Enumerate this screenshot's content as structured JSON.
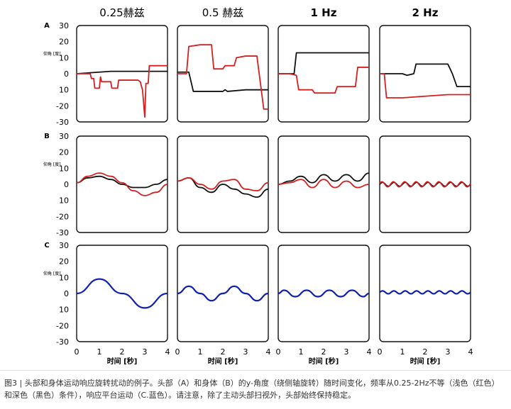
{
  "column_titles": [
    "0.25赫兹",
    "0.5 赫兹",
    "1 Hz",
    "2 Hz"
  ],
  "row_labels": [
    "A",
    "B",
    "C"
  ],
  "ylabel": "仰角 [度]",
  "xlabel": "时间 [秒]",
  "colors": {
    "red": "#d42020",
    "black": "#111111",
    "blue": "#1020b0"
  },
  "caption": "图3 | 头部和身体运动响应旋转扰动的例子。头部（A）和身体（B）的y-角度（绕侧轴旋转）随时间变化，频率从0.25-2Hz不等（浅色（红色）和深色（黑色）条件），响应平台运动（C.蓝色）。请注意，除了主动头部扫视外，头部始终保持稳定。",
  "chart_data": {
    "type": "line",
    "xlim": [
      0,
      4
    ],
    "xticks": [
      "0",
      "1",
      "2",
      "3",
      "4"
    ],
    "ylim": [
      -30,
      30
    ],
    "yticks": [
      "30",
      "20",
      "10",
      "0",
      "10",
      "-20",
      "-30"
    ],
    "grid": false,
    "panels": [
      {
        "row": "A",
        "column": "0.25赫兹",
        "series": [
          {
            "color": "black",
            "x": [
              0,
              0.5,
              1,
              1.5,
              2,
              2.5,
              3,
              3.5,
              4
            ],
            "y": [
              0,
              0.5,
              1,
              1.5,
              1.5,
              1.5,
              1.5,
              1.5,
              1.5
            ]
          },
          {
            "color": "red",
            "x": [
              0,
              0.6,
              0.65,
              0.75,
              0.8,
              1.0,
              1.05,
              1.1,
              1.5,
              1.55,
              1.8,
              1.85,
              2.1,
              2.5,
              2.7,
              2.8,
              2.9,
              3.0,
              3.05,
              3.15,
              3.2,
              3.6,
              4.0
            ],
            "y": [
              0,
              0,
              -3,
              -3,
              -9,
              -9,
              -2,
              -5,
              -5,
              -9,
              -9,
              -4,
              -4,
              -4,
              -4,
              -5,
              -10,
              -27,
              -6,
              -6,
              5,
              5,
              5
            ]
          }
        ]
      },
      {
        "row": "A",
        "column": "0.5 赫兹",
        "series": [
          {
            "color": "black",
            "x": [
              0,
              0.5,
              0.6,
              0.7,
              1.0,
              2.0,
              2.1,
              2.2,
              3.0,
              3.5,
              4.0
            ],
            "y": [
              1,
              1,
              -5,
              -11,
              -11,
              -11,
              -10,
              -11,
              -10,
              -10,
              -10
            ]
          },
          {
            "color": "red",
            "x": [
              0,
              0.4,
              0.5,
              1.0,
              1.5,
              1.6,
              2.0,
              2.1,
              2.5,
              2.6,
              3.0,
              3.5,
              3.6,
              3.8,
              4.0
            ],
            "y": [
              0,
              0,
              17,
              18,
              18,
              3,
              3,
              5,
              5,
              10,
              11,
              11,
              0,
              -22,
              -22
            ]
          }
        ]
      },
      {
        "row": "A",
        "column": "1 Hz",
        "series": [
          {
            "color": "black",
            "x": [
              0,
              0.5,
              0.7,
              0.8,
              1.5,
              2.5,
              3.5,
              4.0
            ],
            "y": [
              0,
              0,
              0,
              13,
              13,
              13,
              13,
              13
            ]
          },
          {
            "color": "red",
            "x": [
              0,
              0.5,
              0.8,
              0.9,
              1.5,
              1.6,
              2.5,
              2.6,
              3.4,
              3.5,
              4.0
            ],
            "y": [
              0,
              0,
              -1,
              -10,
              -10,
              -12,
              -12,
              -8,
              -8,
              4,
              4
            ]
          }
        ]
      },
      {
        "row": "A",
        "column": "2 Hz",
        "series": [
          {
            "color": "black",
            "x": [
              0,
              1.0,
              1.2,
              1.5,
              1.6,
              2.5,
              3.0,
              3.2,
              3.4,
              4.0
            ],
            "y": [
              0,
              0,
              -1,
              0,
              6,
              6,
              6,
              0,
              -8,
              -8
            ]
          },
          {
            "color": "red",
            "x": [
              0,
              0.2,
              0.3,
              1.0,
              2.0,
              3.0,
              4.0
            ],
            "y": [
              0,
              0,
              -15,
              -15,
              -14,
              -13,
              -13
            ]
          }
        ]
      },
      {
        "row": "B",
        "column": "0.25赫兹",
        "series": [
          {
            "color": "black",
            "x": [
              0,
              0.5,
              1.0,
              1.5,
              2.0,
              2.5,
              3.0,
              3.5,
              4.0
            ],
            "y": [
              1,
              4,
              5,
              3,
              0,
              -2,
              -2,
              0,
              3
            ]
          },
          {
            "color": "red",
            "x": [
              0,
              0.5,
              1.0,
              1.5,
              2.0,
              2.5,
              3.0,
              3.5,
              4.0
            ],
            "y": [
              1,
              5,
              7,
              5,
              1,
              -4,
              -7,
              -5,
              0
            ]
          }
        ]
      },
      {
        "row": "B",
        "column": "0.5 赫兹",
        "series": [
          {
            "color": "black",
            "x": [
              0,
              0.5,
              1.0,
              1.5,
              2.0,
              2.5,
              3.0,
              3.5,
              4.0
            ],
            "y": [
              2,
              4,
              -2,
              -5,
              0,
              -3,
              -6,
              -8,
              -3
            ]
          },
          {
            "color": "red",
            "x": [
              0,
              0.5,
              1.0,
              1.5,
              2.0,
              2.5,
              3.0,
              3.5,
              4.0
            ],
            "y": [
              2,
              4,
              0,
              -3,
              2,
              3,
              -3,
              -4,
              1
            ]
          }
        ]
      },
      {
        "row": "B",
        "column": "1 Hz",
        "series": [
          {
            "color": "black",
            "x": [
              0,
              0.5,
              1.0,
              1.5,
              2.0,
              2.5,
              3.0,
              3.5,
              4.0
            ],
            "y": [
              0,
              2,
              5,
              1,
              6,
              2,
              6,
              2,
              7
            ]
          },
          {
            "color": "red",
            "x": [
              0,
              0.5,
              1.0,
              1.5,
              2.0,
              2.5,
              3.0,
              3.5,
              4.0
            ],
            "y": [
              0,
              1,
              3,
              -2,
              3,
              -2,
              2,
              -2,
              0
            ]
          }
        ]
      },
      {
        "row": "B",
        "column": "2 Hz",
        "series": [
          {
            "color": "black",
            "x": [
              0,
              1.0,
              2.0,
              3.0,
              4.0
            ],
            "y": [
              0,
              0,
              0,
              0,
              0
            ]
          },
          {
            "color": "red",
            "x": [
              0,
              1.0,
              2.0,
              3.0,
              4.0
            ],
            "y": [
              0,
              0,
              0,
              0,
              0
            ]
          }
        ]
      },
      {
        "row": "C",
        "column": "0.25赫兹",
        "series": [
          {
            "color": "blue",
            "x": [
              0,
              1.0,
              2.0,
              3.0,
              4.0
            ],
            "y": [
              0,
              9,
              0,
              -9,
              0
            ]
          }
        ]
      },
      {
        "row": "C",
        "column": "0.5 赫兹",
        "series": [
          {
            "color": "blue",
            "x": [
              0,
              0.5,
              1.0,
              1.5,
              2.0,
              2.5,
              3.0,
              3.5,
              4.0
            ],
            "y": [
              0,
              4.5,
              0,
              -4.5,
              0,
              4.5,
              0,
              -4.5,
              0
            ]
          }
        ]
      },
      {
        "row": "C",
        "column": "1 Hz",
        "series": [
          {
            "color": "blue",
            "x": [
              0,
              0.25,
              0.75,
              1.25,
              1.75,
              2.25,
              2.75,
              3.25,
              3.75,
              4.0
            ],
            "y": [
              0,
              2,
              -2,
              2,
              -2,
              2,
              -2,
              2,
              -2,
              0
            ]
          }
        ]
      },
      {
        "row": "C",
        "column": "2 Hz",
        "series": [
          {
            "color": "blue",
            "x": [
              0,
              4.0
            ],
            "y": [
              0.7,
              0.7
            ]
          }
        ]
      }
    ]
  }
}
